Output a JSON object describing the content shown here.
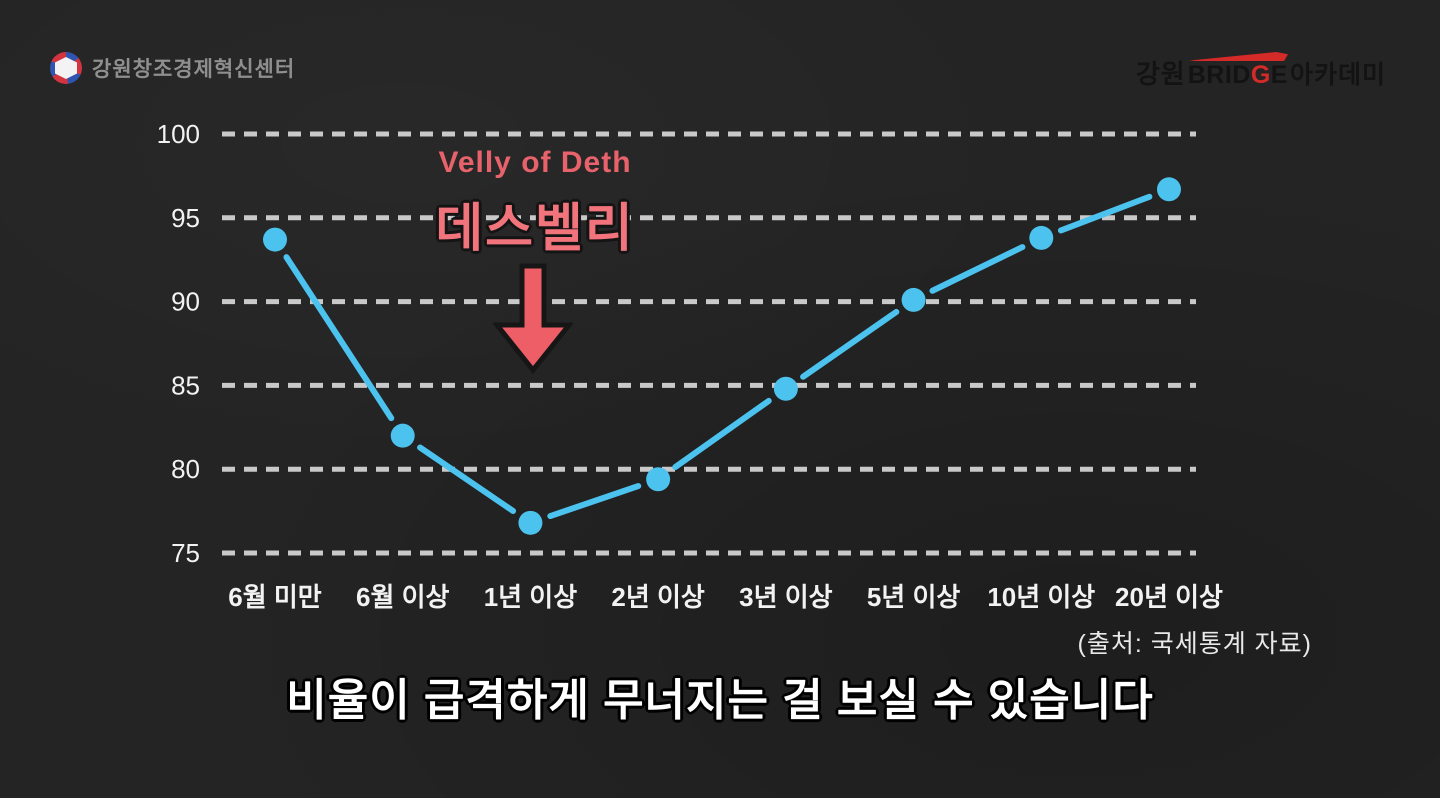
{
  "header": {
    "left_logo_text": "강원창조경제혁신센터",
    "right_logo": {
      "prefix": "강원",
      "brand_1": "BRID",
      "brand_accent": "G",
      "brand_2": "E",
      "suffix": "아카데미"
    }
  },
  "annotation": {
    "subtitle": "Velly of Deth",
    "title": "데스벨리"
  },
  "chart_data": {
    "type": "line",
    "categories": [
      "6월 미만",
      "6월 이상",
      "1년 이상",
      "2년 이상",
      "3년 이상",
      "5년 이상",
      "10년 이상",
      "20년 이상"
    ],
    "values": [
      93.7,
      82.0,
      76.8,
      79.4,
      84.8,
      90.1,
      93.8,
      96.7
    ],
    "y_ticks": [
      75,
      80,
      85,
      90,
      95,
      100
    ],
    "ylim": [
      75,
      100
    ],
    "grid": "horizontal-dashed",
    "legend": "none",
    "line_color": "#4cc2ee",
    "marker": "circle"
  },
  "source_note": "(출처: 국세통계 자료)",
  "caption": "비율이 급격하게 무너지는 걸 보실 수 있습니다",
  "colors": {
    "background": "#242424",
    "grid": "#c9c9c9",
    "axis_text": "#f2f2f2",
    "line": "#4cc2ee",
    "accent_red": "#ef6a72",
    "logo_red": "#d42a28"
  }
}
